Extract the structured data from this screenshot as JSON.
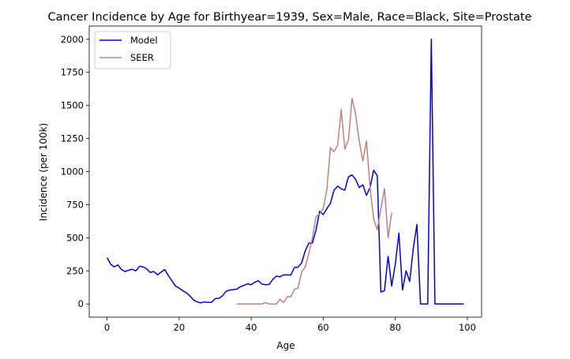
{
  "chart_data": {
    "type": "line",
    "title": "Cancer Incidence by Age for Birthyear=1939, Sex=Male, Race=Black, Site=Prostate",
    "xlabel": "Age",
    "ylabel": "Incidence (per 100k)",
    "xlim": [
      -4.95,
      103.95
    ],
    "ylim": [
      -100,
      2100
    ],
    "xticks": [
      0,
      20,
      40,
      60,
      80,
      100
    ],
    "yticks": [
      0,
      250,
      500,
      750,
      1000,
      1250,
      1500,
      1750,
      2000
    ],
    "grid": false,
    "legend_position": "upper-left",
    "series": [
      {
        "name": "Model",
        "color": "#0000dd",
        "x": [
          0,
          1,
          2,
          3,
          4,
          5,
          6,
          7,
          8,
          9,
          10,
          11,
          12,
          13,
          14,
          15,
          16,
          17,
          18,
          19,
          20,
          21,
          22,
          23,
          24,
          25,
          26,
          27,
          28,
          29,
          30,
          31,
          32,
          33,
          34,
          35,
          36,
          37,
          38,
          39,
          40,
          41,
          42,
          43,
          44,
          45,
          46,
          47,
          48,
          49,
          50,
          51,
          52,
          53,
          54,
          55,
          56,
          57,
          58,
          59,
          60,
          61,
          62,
          63,
          64,
          65,
          66,
          67,
          68,
          69,
          70,
          71,
          72,
          73,
          74,
          75,
          76,
          77,
          78,
          79,
          80,
          81,
          82,
          83,
          84,
          85,
          86,
          87,
          88,
          89,
          90,
          91,
          92,
          93,
          94,
          95,
          96,
          97,
          98,
          99
        ],
        "y": [
          350,
          300,
          280,
          295,
          260,
          245,
          255,
          262,
          250,
          285,
          280,
          265,
          238,
          245,
          220,
          240,
          260,
          215,
          175,
          135,
          120,
          100,
          85,
          60,
          30,
          15,
          8,
          15,
          12,
          12,
          40,
          42,
          60,
          95,
          105,
          108,
          112,
          130,
          140,
          152,
          145,
          165,
          175,
          150,
          145,
          148,
          185,
          210,
          205,
          220,
          220,
          218,
          275,
          278,
          310,
          400,
          460,
          460,
          560,
          700,
          675,
          720,
          760,
          860,
          890,
          870,
          860,
          960,
          975,
          940,
          880,
          900,
          820,
          880,
          1010,
          970,
          90,
          100,
          360,
          135,
          300,
          535,
          105,
          250,
          170,
          420,
          600,
          0,
          0,
          0,
          2000,
          0,
          0,
          0,
          0,
          0,
          0,
          0,
          0,
          0
        ]
      },
      {
        "name": "SEER",
        "color": "#c08080",
        "x": [
          36,
          37,
          38,
          39,
          40,
          41,
          42,
          43,
          44,
          45,
          46,
          47,
          48,
          49,
          50,
          51,
          52,
          53,
          54,
          55,
          56,
          57,
          58,
          59,
          60,
          61,
          62,
          63,
          64,
          65,
          66,
          67,
          68,
          69,
          70,
          71,
          72,
          73,
          74,
          75,
          76,
          77,
          78,
          79
        ],
        "y": [
          0,
          0,
          0,
          0,
          0,
          0,
          0,
          0,
          10,
          0,
          0,
          0,
          35,
          10,
          55,
          55,
          110,
          120,
          240,
          280,
          380,
          500,
          660,
          680,
          720,
          860,
          1180,
          1150,
          1200,
          1470,
          1170,
          1240,
          1555,
          1430,
          1230,
          1080,
          1230,
          880,
          640,
          560,
          720,
          870,
          500,
          690
        ]
      }
    ]
  }
}
